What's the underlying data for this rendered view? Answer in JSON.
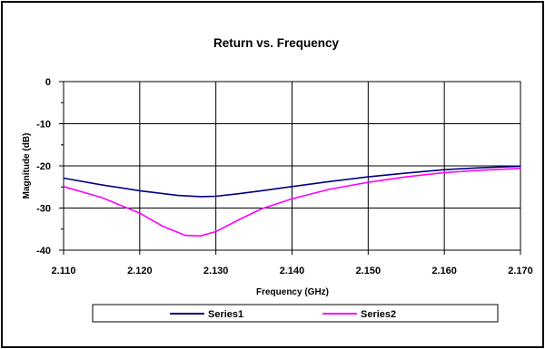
{
  "chart_data": {
    "type": "line",
    "title": "Return vs. Frequency",
    "xlabel": "Frequency (GHz)",
    "ylabel": "Magnitude (dB)",
    "xlim": [
      2.11,
      2.17
    ],
    "ylim": [
      -40,
      0
    ],
    "xticks": [
      2.11,
      2.12,
      2.13,
      2.14,
      2.15,
      2.16,
      2.17
    ],
    "xtick_labels": [
      "2.110",
      "2.120",
      "2.130",
      "2.140",
      "2.150",
      "2.160",
      "2.170"
    ],
    "yticks": [
      0,
      -10,
      -20,
      -30,
      -40
    ],
    "ytick_labels": [
      "0",
      "-10",
      "-20",
      "-30",
      "-40"
    ],
    "grid": true,
    "legend_position": "bottom",
    "series": [
      {
        "name": "Series1",
        "color": "#000080",
        "x": [
          2.11,
          2.115,
          2.12,
          2.125,
          2.128,
          2.13,
          2.133,
          2.136,
          2.14,
          2.145,
          2.15,
          2.155,
          2.16,
          2.165,
          2.17
        ],
        "y": [
          -22.9,
          -24.5,
          -25.9,
          -27.0,
          -27.3,
          -27.2,
          -26.6,
          -25.9,
          -24.9,
          -23.7,
          -22.6,
          -21.7,
          -20.9,
          -20.4,
          -20.1
        ]
      },
      {
        "name": "Series2",
        "color": "#ff00ff",
        "x": [
          2.11,
          2.115,
          2.12,
          2.123,
          2.126,
          2.128,
          2.13,
          2.133,
          2.136,
          2.14,
          2.145,
          2.15,
          2.155,
          2.16,
          2.165,
          2.17
        ],
        "y": [
          -24.9,
          -27.5,
          -31.2,
          -34.3,
          -36.5,
          -36.6,
          -35.6,
          -32.8,
          -30.2,
          -27.8,
          -25.5,
          -23.9,
          -22.6,
          -21.6,
          -21.0,
          -20.6
        ]
      }
    ]
  }
}
